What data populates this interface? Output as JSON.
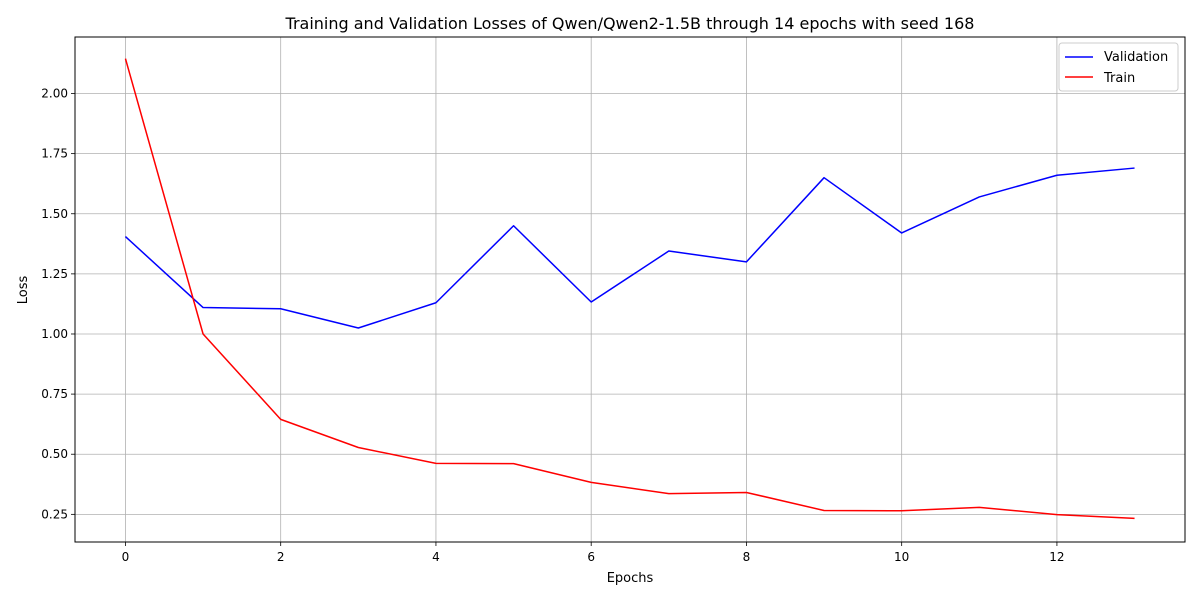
{
  "chart_data": {
    "type": "line",
    "title": "Training and Validation Losses of Qwen/Qwen2-1.5B through 14 epochs with seed 168",
    "xlabel": "Epochs",
    "ylabel": "Loss",
    "x": [
      0,
      1,
      2,
      3,
      4,
      5,
      6,
      7,
      8,
      9,
      10,
      11,
      12,
      13
    ],
    "xlim": [
      -0.65,
      13.65
    ],
    "ylim": [
      0.135,
      2.235
    ],
    "xticks": [
      0,
      2,
      4,
      6,
      8,
      10,
      12
    ],
    "yticks": [
      0.25,
      0.5,
      0.75,
      1.0,
      1.25,
      1.5,
      1.75,
      2.0
    ],
    "xtick_labels": [
      "0",
      "2",
      "4",
      "6",
      "8",
      "10",
      "12"
    ],
    "ytick_labels": [
      "0.25",
      "0.50",
      "0.75",
      "1.00",
      "1.25",
      "1.50",
      "1.75",
      "2.00"
    ],
    "grid": true,
    "legend_position": "top-right",
    "series": [
      {
        "name": "Validation",
        "color": "#0000ff",
        "values": [
          1.405,
          1.11,
          1.105,
          1.025,
          1.13,
          1.45,
          1.133,
          1.345,
          1.3,
          1.65,
          1.42,
          1.57,
          1.66,
          1.69
        ]
      },
      {
        "name": "Train",
        "color": "#ff0000",
        "values": [
          2.145,
          1.0,
          0.645,
          0.528,
          0.462,
          0.461,
          0.383,
          0.336,
          0.341,
          0.266,
          0.265,
          0.279,
          0.249,
          0.233
        ]
      }
    ]
  }
}
